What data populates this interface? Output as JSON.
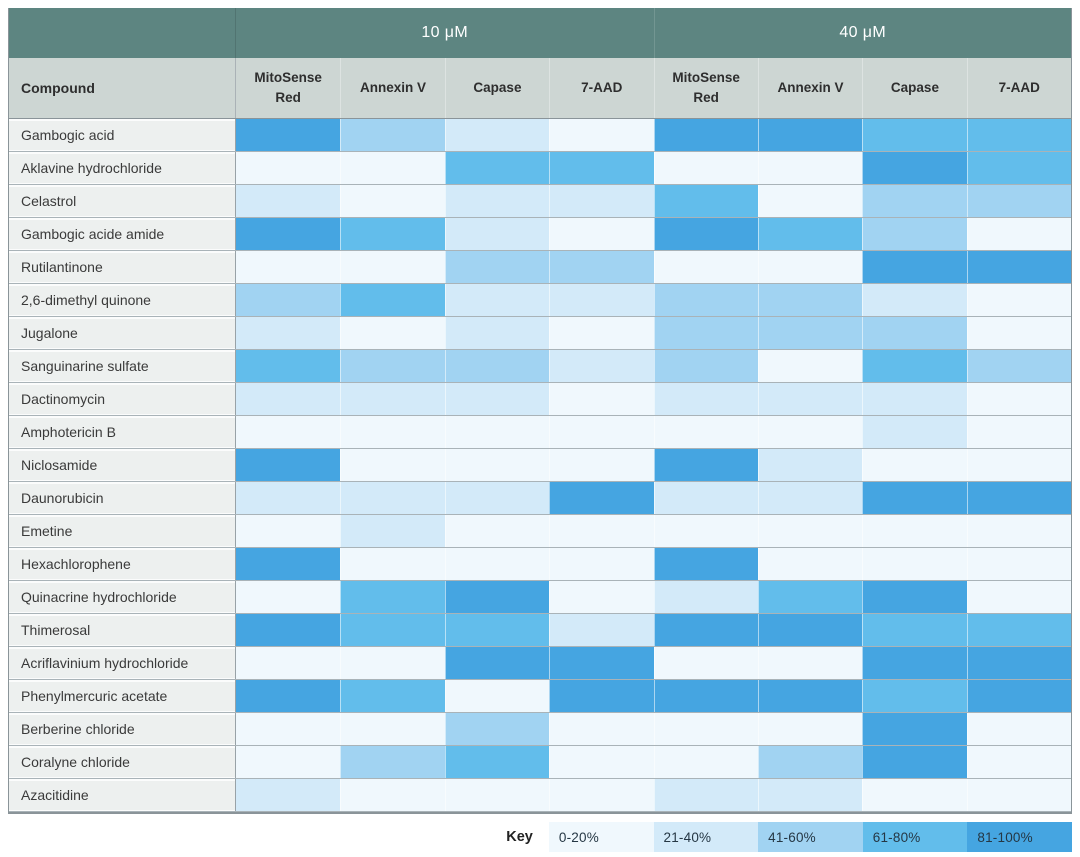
{
  "table": {
    "groups": [
      {
        "label": "10 μM"
      },
      {
        "label": "40 μM"
      }
    ],
    "compound_header": "Compound",
    "assay_headers": [
      "MitoSense Red",
      "Annexin V",
      "Capase",
      "7-AAD",
      "MitoSense Red",
      "Annexin V",
      "Capase",
      "7-AAD"
    ]
  },
  "key": {
    "label": "Key"
  },
  "colors": {
    "header_teal": "#5D8581",
    "subheader_bg": "#CDD6D3",
    "compound_bg": "#EDF0EF",
    "outer_border": "#8A9499"
  },
  "chart_data": {
    "type": "heatmap",
    "title": "",
    "column_groups": [
      {
        "label": "10 μM",
        "columns": [
          "MitoSense Red",
          "Annexin V",
          "Capase",
          "7-AAD"
        ]
      },
      {
        "label": "40 μM",
        "columns": [
          "MitoSense Red",
          "Annexin V",
          "Capase",
          "7-AAD"
        ]
      }
    ],
    "legend": {
      "title": "Key",
      "position": "bottom",
      "buckets": [
        {
          "label": "0-20%",
          "color": "#F0F8FD"
        },
        {
          "label": "21-40%",
          "color": "#D3EAF9"
        },
        {
          "label": "41-60%",
          "color": "#A1D3F2"
        },
        {
          "label": "61-80%",
          "color": "#62BDEB"
        },
        {
          "label": "81-100%",
          "color": "#45A5E1"
        }
      ]
    },
    "value_encoding": "levels are indices 1-5 into legend.buckets (percent response bucket), ordered 10uM MitoSense Red, Annexin V, Capase, 7-AAD then 40uM MitoSense Red, Annexin V, Capase, 7-AAD",
    "rows": [
      {
        "compound": "Gambogic acid",
        "levels": [
          5,
          3,
          2,
          1,
          5,
          5,
          4,
          4
        ]
      },
      {
        "compound": "Aklavine hydrochloride",
        "levels": [
          1,
          1,
          4,
          4,
          1,
          1,
          5,
          4
        ]
      },
      {
        "compound": "Celastrol",
        "levels": [
          2,
          1,
          2,
          2,
          4,
          1,
          3,
          3
        ]
      },
      {
        "compound": "Gambogic acide amide",
        "levels": [
          5,
          4,
          2,
          1,
          5,
          4,
          3,
          1
        ]
      },
      {
        "compound": "Rutilantinone",
        "levels": [
          1,
          1,
          3,
          3,
          1,
          1,
          5,
          5
        ]
      },
      {
        "compound": "2,6-dimethyl quinone",
        "levels": [
          3,
          4,
          2,
          2,
          3,
          3,
          2,
          1
        ]
      },
      {
        "compound": "Jugalone",
        "levels": [
          2,
          1,
          2,
          1,
          3,
          3,
          3,
          1
        ]
      },
      {
        "compound": "Sanguinarine sulfate",
        "levels": [
          4,
          3,
          3,
          2,
          3,
          1,
          4,
          3
        ]
      },
      {
        "compound": "Dactinomycin",
        "levels": [
          2,
          2,
          2,
          1,
          2,
          2,
          2,
          1
        ]
      },
      {
        "compound": "Amphotericin B",
        "levels": [
          1,
          1,
          1,
          1,
          1,
          1,
          2,
          1
        ]
      },
      {
        "compound": "Niclosamide",
        "levels": [
          5,
          1,
          1,
          1,
          5,
          2,
          1,
          1
        ]
      },
      {
        "compound": "Daunorubicin",
        "levels": [
          2,
          2,
          2,
          5,
          2,
          2,
          5,
          5
        ]
      },
      {
        "compound": "Emetine",
        "levels": [
          1,
          2,
          1,
          1,
          1,
          1,
          1,
          1
        ]
      },
      {
        "compound": "Hexachlorophene",
        "levels": [
          5,
          1,
          1,
          1,
          5,
          1,
          1,
          1
        ]
      },
      {
        "compound": "Quinacrine hydrochloride",
        "levels": [
          1,
          4,
          5,
          1,
          2,
          4,
          5,
          1
        ]
      },
      {
        "compound": "Thimerosal",
        "levels": [
          5,
          4,
          4,
          2,
          5,
          5,
          4,
          4
        ]
      },
      {
        "compound": "Acriflavinium hydrochloride",
        "levels": [
          1,
          1,
          5,
          5,
          1,
          1,
          5,
          5
        ]
      },
      {
        "compound": "Phenylmercuric acetate",
        "levels": [
          5,
          4,
          1,
          5,
          5,
          5,
          4,
          5
        ]
      },
      {
        "compound": "Berberine chloride",
        "levels": [
          1,
          1,
          3,
          1,
          1,
          1,
          5,
          1
        ]
      },
      {
        "compound": "Coralyne chloride",
        "levels": [
          1,
          3,
          4,
          1,
          1,
          3,
          5,
          1
        ]
      },
      {
        "compound": "Azacitidine",
        "levels": [
          2,
          1,
          1,
          1,
          2,
          2,
          1,
          1
        ]
      }
    ]
  }
}
